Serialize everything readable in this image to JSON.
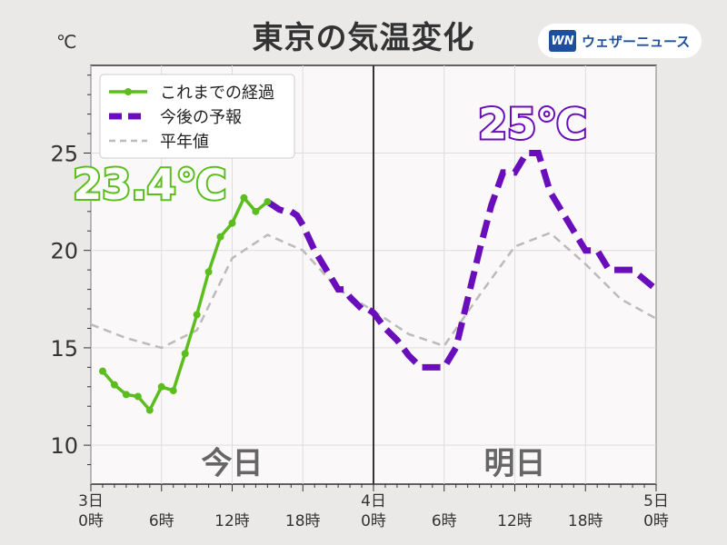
{
  "title": "東京の気温変化",
  "unit": "℃",
  "brand": {
    "logo": "WN",
    "name": "ウェザーニュース"
  },
  "colors": {
    "observed": "#5cbd1e",
    "forecast": "#6a0dba",
    "normal": "#bbbbbb",
    "plot_bg": "#faf8f8",
    "grid": "#dddddd",
    "day_text": "#666666"
  },
  "chart_data": {
    "type": "line",
    "x_unit": "hours since 3日0時",
    "xlim": [
      0,
      48
    ],
    "ylim": [
      8,
      29.5
    ],
    "grid": true,
    "legend_placement": "top-left",
    "yticks": [
      10,
      15,
      20,
      25
    ],
    "xticks": [
      {
        "x": 0,
        "lines": [
          "3日",
          "0時"
        ]
      },
      {
        "x": 6,
        "lines": [
          "",
          "6時"
        ]
      },
      {
        "x": 12,
        "lines": [
          "",
          "12時"
        ]
      },
      {
        "x": 18,
        "lines": [
          "",
          "18時"
        ]
      },
      {
        "x": 24,
        "lines": [
          "4日",
          "0時"
        ]
      },
      {
        "x": 30,
        "lines": [
          "",
          "6時"
        ]
      },
      {
        "x": 36,
        "lines": [
          "",
          "12時"
        ]
      },
      {
        "x": 42,
        "lines": [
          "",
          "18時"
        ]
      },
      {
        "x": 48,
        "lines": [
          "5日",
          "0時"
        ]
      }
    ],
    "series": [
      {
        "name": "これまでの経過",
        "x": [
          1,
          2,
          3,
          4,
          5,
          6,
          7,
          8,
          9,
          10,
          11,
          12,
          13,
          14,
          15
        ],
        "values": [
          13.8,
          13.1,
          12.6,
          12.5,
          11.8,
          13.0,
          12.8,
          14.7,
          16.7,
          18.9,
          20.7,
          21.4,
          22.7,
          22.0,
          22.5
        ]
      },
      {
        "name": "今後の予報",
        "x": [
          15,
          16,
          16.5,
          17,
          17.5,
          18,
          19,
          20,
          21,
          21.5,
          22,
          23,
          23.5,
          24,
          25,
          26,
          26.5,
          27,
          27.5,
          28,
          29,
          30,
          31,
          32,
          33,
          34,
          35,
          36,
          37,
          38,
          39,
          40,
          41,
          42,
          43,
          44,
          45,
          46,
          47,
          48
        ],
        "values": [
          22.5,
          22.1,
          22.0,
          22.0,
          21.8,
          21.3,
          20.0,
          19.0,
          18.0,
          18.0,
          17.6,
          17.0,
          17.0,
          16.8,
          16.0,
          15.4,
          15.0,
          14.6,
          14.3,
          14.0,
          14.0,
          14.0,
          15.0,
          17.5,
          20.0,
          22.3,
          24.0,
          24.0,
          25.0,
          25.0,
          23.0,
          22.0,
          21.0,
          20.0,
          20.0,
          19.0,
          19.0,
          19.0,
          18.5,
          18.0
        ]
      },
      {
        "name": "平年値",
        "x": [
          0,
          3,
          6,
          9,
          12,
          15,
          18,
          21,
          24,
          27,
          30,
          33,
          36,
          39,
          42,
          45,
          48
        ],
        "values": [
          16.2,
          15.5,
          15.0,
          15.9,
          19.6,
          20.8,
          20.0,
          18.0,
          16.9,
          15.7,
          15.1,
          17.7,
          20.2,
          20.9,
          19.3,
          17.5,
          16.5
        ]
      }
    ],
    "annotations": [
      {
        "text": "23.4℃",
        "x": 5,
        "y": 23.4,
        "series": 0
      },
      {
        "text": "25℃",
        "x": 37.5,
        "y": 26.5,
        "series": 1
      },
      {
        "text": "今日",
        "x": 12,
        "y": 9.1
      },
      {
        "text": "明日",
        "x": 36,
        "y": 9.1
      }
    ]
  }
}
